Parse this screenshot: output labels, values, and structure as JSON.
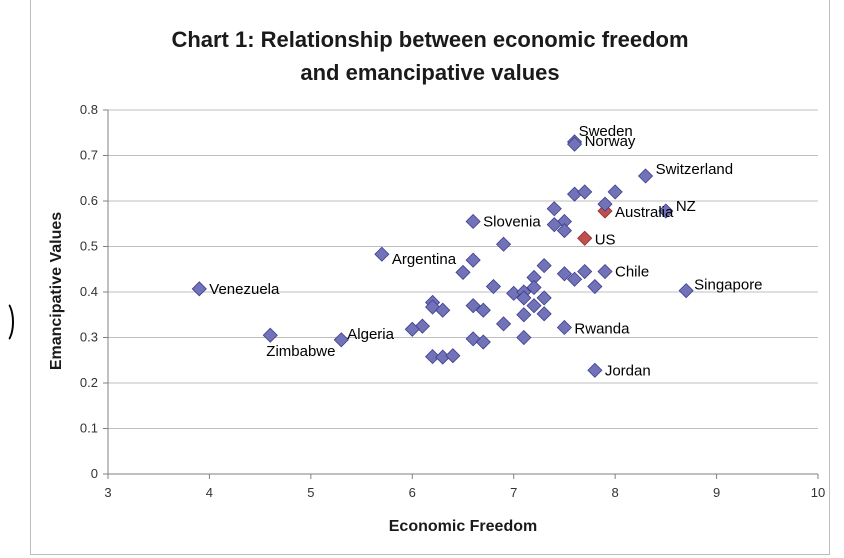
{
  "colors": {
    "point": "#7272b8",
    "point_edge": "#3d3d8c",
    "highlight": "#c0504d",
    "grid": "#bfbfbf",
    "axis": "#808080"
  },
  "chart_data": {
    "type": "scatter",
    "title": [
      "Chart 1: Relationship between economic freedom",
      "and emancipative values"
    ],
    "xlabel": "Economic Freedom",
    "ylabel": "Emancipative Values",
    "xlim": [
      3,
      10
    ],
    "ylim": [
      0,
      0.8
    ],
    "xticks": [
      3,
      4,
      5,
      6,
      7,
      8,
      9,
      10
    ],
    "yticks": [
      0,
      0.1,
      0.2,
      0.3,
      0.4,
      0.5,
      0.6,
      0.7,
      0.8
    ],
    "grid": "horizontal",
    "points": [
      {
        "x": 7.6,
        "y": 0.73,
        "label": "Sweden"
      },
      {
        "x": 7.6,
        "y": 0.725,
        "label": "Norway"
      },
      {
        "x": 8.3,
        "y": 0.655,
        "label": "Switzerland"
      },
      {
        "x": 8.5,
        "y": 0.578,
        "label": "NZ"
      },
      {
        "x": 7.9,
        "y": 0.578,
        "label": "Australia",
        "highlight": true
      },
      {
        "x": 7.7,
        "y": 0.518,
        "label": "US",
        "highlight": true
      },
      {
        "x": 6.6,
        "y": 0.555,
        "label": "Slovenia"
      },
      {
        "x": 5.7,
        "y": 0.483,
        "label": "Argentina"
      },
      {
        "x": 7.9,
        "y": 0.445,
        "label": "Chile"
      },
      {
        "x": 8.7,
        "y": 0.403,
        "label": "Singapore"
      },
      {
        "x": 3.9,
        "y": 0.407,
        "label": "Venezuela"
      },
      {
        "x": 5.3,
        "y": 0.295,
        "label": "Algeria"
      },
      {
        "x": 4.6,
        "y": 0.305,
        "label": "Zimbabwe"
      },
      {
        "x": 7.5,
        "y": 0.322,
        "label": "Rwanda"
      },
      {
        "x": 7.8,
        "y": 0.228,
        "label": "Jordan"
      },
      {
        "x": 7.6,
        "y": 0.615
      },
      {
        "x": 7.7,
        "y": 0.62
      },
      {
        "x": 8.0,
        "y": 0.62
      },
      {
        "x": 7.9,
        "y": 0.593
      },
      {
        "x": 7.4,
        "y": 0.583
      },
      {
        "x": 7.5,
        "y": 0.555
      },
      {
        "x": 7.4,
        "y": 0.548
      },
      {
        "x": 7.5,
        "y": 0.535
      },
      {
        "x": 6.9,
        "y": 0.505
      },
      {
        "x": 6.6,
        "y": 0.47
      },
      {
        "x": 6.5,
        "y": 0.443
      },
      {
        "x": 7.3,
        "y": 0.458
      },
      {
        "x": 7.5,
        "y": 0.44
      },
      {
        "x": 7.6,
        "y": 0.428
      },
      {
        "x": 7.7,
        "y": 0.445
      },
      {
        "x": 7.8,
        "y": 0.412
      },
      {
        "x": 7.2,
        "y": 0.432
      },
      {
        "x": 7.2,
        "y": 0.41
      },
      {
        "x": 6.8,
        "y": 0.412
      },
      {
        "x": 7.0,
        "y": 0.397
      },
      {
        "x": 7.1,
        "y": 0.4
      },
      {
        "x": 7.1,
        "y": 0.387
      },
      {
        "x": 7.3,
        "y": 0.387
      },
      {
        "x": 7.2,
        "y": 0.37
      },
      {
        "x": 7.3,
        "y": 0.352
      },
      {
        "x": 7.1,
        "y": 0.35
      },
      {
        "x": 6.2,
        "y": 0.377
      },
      {
        "x": 6.2,
        "y": 0.367
      },
      {
        "x": 6.3,
        "y": 0.36
      },
      {
        "x": 6.6,
        "y": 0.37
      },
      {
        "x": 6.7,
        "y": 0.36
      },
      {
        "x": 6.9,
        "y": 0.33
      },
      {
        "x": 6.1,
        "y": 0.325
      },
      {
        "x": 6.0,
        "y": 0.318
      },
      {
        "x": 7.1,
        "y": 0.3
      },
      {
        "x": 6.6,
        "y": 0.297
      },
      {
        "x": 6.7,
        "y": 0.29
      },
      {
        "x": 6.2,
        "y": 0.258
      },
      {
        "x": 6.3,
        "y": 0.257
      },
      {
        "x": 6.4,
        "y": 0.26
      }
    ]
  }
}
